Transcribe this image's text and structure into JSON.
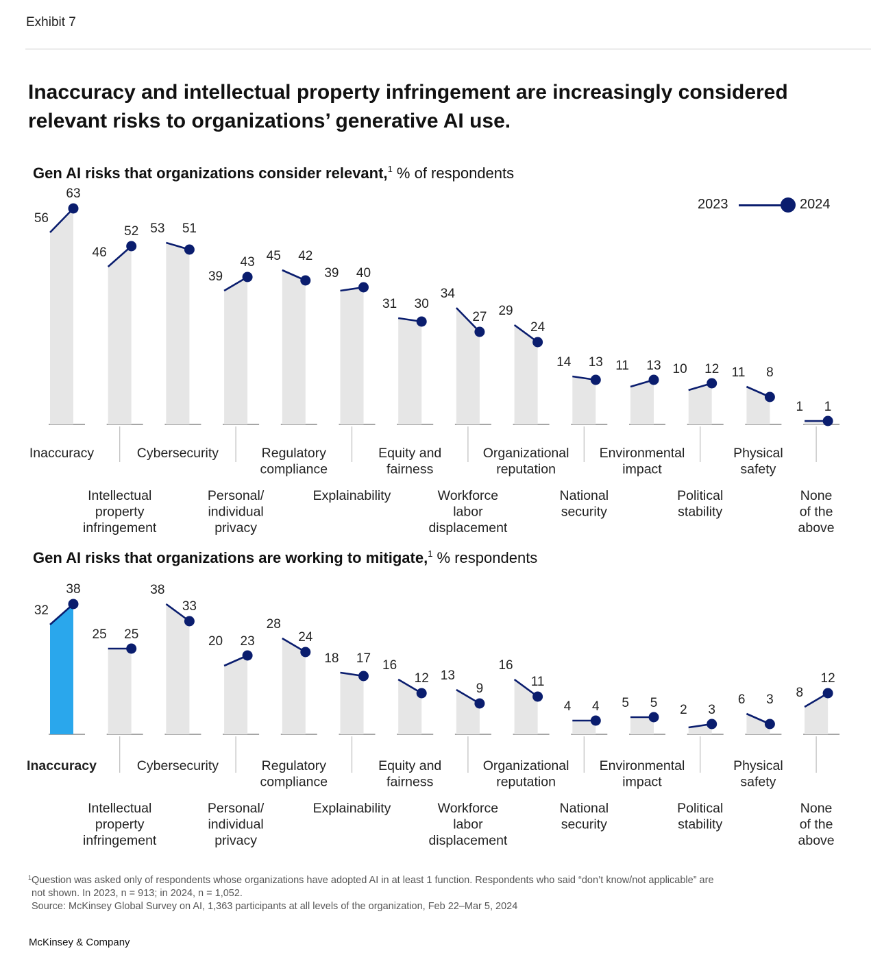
{
  "exhibit_label": "Exhibit 7",
  "headline": "Inaccuracy and intellectual property infringement are increasingly considered relevant risks to organizations’ generative AI use.",
  "legend": {
    "year1": "2023",
    "year2": "2024"
  },
  "colors": {
    "bar": "#e6e6e6",
    "highlight_bar": "#2aa7ec",
    "line": "#0a1d6e",
    "axis": "#888888"
  },
  "chart_data": [
    {
      "type": "bar",
      "title": "Gen AI risks that organizations consider relevant,",
      "footnote_ref": "1",
      "unit": "% of respondents",
      "categories": [
        "Inaccuracy",
        "Intellectual property infringement",
        "Cybersecurity",
        "Personal/ individual privacy",
        "Regulatory compliance",
        "Explainability",
        "Equity and fairness",
        "Workforce labor displacement",
        "Organizational reputation",
        "National security",
        "Environmental impact",
        "Political stability",
        "Physical safety",
        "None of the above"
      ],
      "label_lines": [
        [
          "Inaccuracy"
        ],
        [
          "Intellectual",
          "property",
          "infringement"
        ],
        [
          "Cybersecurity"
        ],
        [
          "Personal/",
          "individual",
          "privacy"
        ],
        [
          "Regulatory",
          "compliance"
        ],
        [
          "Explainability"
        ],
        [
          "Equity and",
          "fairness"
        ],
        [
          "Workforce",
          "labor",
          "displacement"
        ],
        [
          "Organizational",
          "reputation"
        ],
        [
          "National",
          "security"
        ],
        [
          "Environmental",
          "impact"
        ],
        [
          "Political",
          "stability"
        ],
        [
          "Physical",
          "safety"
        ],
        [
          "None",
          "of the",
          "above"
        ]
      ],
      "series": [
        {
          "name": "2023",
          "values": [
            56,
            46,
            53,
            39,
            45,
            39,
            31,
            34,
            29,
            14,
            11,
            10,
            11,
            1
          ]
        },
        {
          "name": "2024",
          "values": [
            63,
            52,
            51,
            43,
            42,
            40,
            30,
            27,
            24,
            13,
            13,
            12,
            8,
            1
          ]
        }
      ],
      "highlight_index": null,
      "ylim": [
        0,
        63
      ]
    },
    {
      "type": "bar",
      "title": "Gen AI risks that organizations are working to mitigate,",
      "footnote_ref": "1",
      "unit": "% respondents",
      "categories": [
        "Inaccuracy",
        "Intellectual property infringement",
        "Cybersecurity",
        "Personal/ individual privacy",
        "Regulatory compliance",
        "Explainability",
        "Equity and fairness",
        "Workforce labor displacement",
        "Organizational reputation",
        "National security",
        "Environmental impact",
        "Political stability",
        "Physical safety",
        "None of the above"
      ],
      "label_lines": [
        [
          "Inaccuracy"
        ],
        [
          "Intellectual",
          "property",
          "infringement"
        ],
        [
          "Cybersecurity"
        ],
        [
          "Personal/",
          "individual",
          "privacy"
        ],
        [
          "Regulatory",
          "compliance"
        ],
        [
          "Explainability"
        ],
        [
          "Equity and",
          "fairness"
        ],
        [
          "Workforce",
          "labor",
          "displacement"
        ],
        [
          "Organizational",
          "reputation"
        ],
        [
          "National",
          "security"
        ],
        [
          "Environmental",
          "impact"
        ],
        [
          "Political",
          "stability"
        ],
        [
          "Physical",
          "safety"
        ],
        [
          "None",
          "of the",
          "above"
        ]
      ],
      "series": [
        {
          "name": "2023",
          "values": [
            32,
            25,
            38,
            20,
            28,
            18,
            16,
            13,
            16,
            4,
            5,
            2,
            6,
            8
          ]
        },
        {
          "name": "2024",
          "values": [
            38,
            25,
            33,
            23,
            24,
            17,
            12,
            9,
            11,
            4,
            5,
            3,
            3,
            12
          ]
        }
      ],
      "highlight_index": 0,
      "ylim": [
        0,
        38
      ]
    }
  ],
  "footnote": {
    "marker": "1",
    "line1": "Question was asked only of respondents whose organizations have adopted AI in at least 1 function. Respondents who said “don’t know/not applicable” are",
    "line2": "not shown. In 2023, n = 913; in 2024, n = 1,052.",
    "source": "Source: McKinsey Global Survey on AI, 1,363 participants at all levels of the organization, Feb 22–Mar 5, 2024"
  },
  "brand": "McKinsey & Company"
}
